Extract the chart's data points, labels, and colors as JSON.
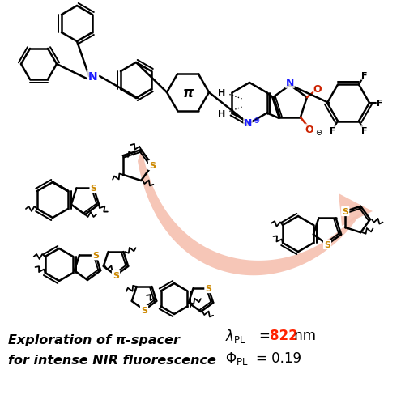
{
  "bg_color": "#ffffff",
  "arrow_fill": "#f5c0b0",
  "arrow_edge": "#e8a090",
  "text_left_line1": "Exploration of π-spacer",
  "text_left_line2": "for intense NIR fluorescence",
  "val_822": "822",
  "val_019": "0.19",
  "val_color": "#ff2200",
  "N_color": "#1a1aff",
  "S_color": "#cc8800",
  "O_color": "#cc2200",
  "bond_lw": 1.8,
  "fig_width": 5.0,
  "fig_height": 4.89,
  "dpi": 100
}
